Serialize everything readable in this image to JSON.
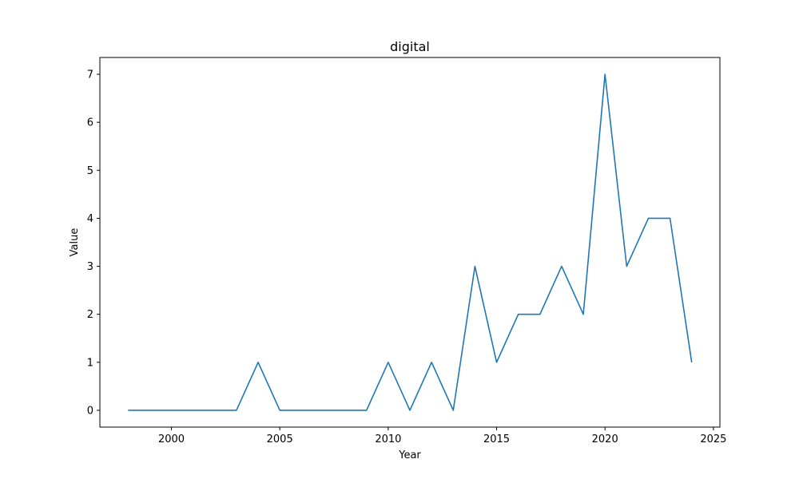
{
  "chart_data": {
    "type": "line",
    "title": "digital",
    "xlabel": "Year",
    "ylabel": "Value",
    "x": [
      1998,
      1999,
      2000,
      2001,
      2002,
      2003,
      2004,
      2005,
      2006,
      2007,
      2008,
      2009,
      2010,
      2011,
      2012,
      2013,
      2014,
      2015,
      2016,
      2017,
      2018,
      2019,
      2020,
      2021,
      2022,
      2023,
      2024
    ],
    "series": [
      {
        "values": [
          0,
          0,
          0,
          0,
          0,
          0,
          1,
          0,
          0,
          0,
          0,
          0,
          1,
          0,
          1,
          0,
          3,
          1,
          2,
          2,
          3,
          2,
          7,
          3,
          4,
          4,
          1
        ],
        "color": "#1f77b4"
      }
    ],
    "xlim": [
      1996.7,
      2025.3
    ],
    "ylim": [
      -0.35,
      7.35
    ],
    "xticks": [
      "2000",
      "2005",
      "2010",
      "2015",
      "2020",
      "2025"
    ],
    "yticks": [
      "0",
      "1",
      "2",
      "3",
      "4",
      "5",
      "6",
      "7"
    ],
    "grid": false,
    "legend": "none"
  }
}
